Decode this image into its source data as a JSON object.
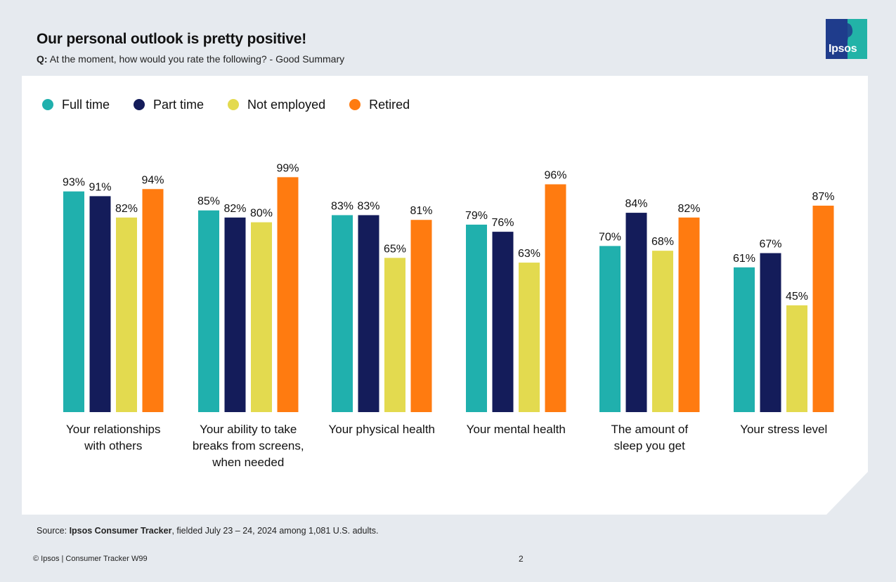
{
  "header": {
    "title": "Our personal outlook is pretty positive!",
    "question_prefix": "Q:",
    "question_text": "At the moment, how would you rate the following? - Good Summary"
  },
  "logo": {
    "text": "Ipsos"
  },
  "colors": {
    "full_time": "#20b0ad",
    "part_time": "#141c5a",
    "not_employed": "#e3da4f",
    "retired": "#ff7b10"
  },
  "chart_data": {
    "type": "bar",
    "title": "Our personal outlook is pretty positive!",
    "xlabel": "",
    "ylabel": "",
    "ylim": [
      0,
      100
    ],
    "value_suffix": "%",
    "categories": [
      [
        "Your relationships",
        "with others"
      ],
      [
        "Your ability to take",
        "breaks from screens,",
        "when needed"
      ],
      [
        "Your physical health"
      ],
      [
        "Your mental health"
      ],
      [
        "The amount of",
        "sleep you get"
      ],
      [
        "Your stress level"
      ]
    ],
    "series": [
      {
        "name": "Full time",
        "color": "#20b0ad",
        "values": [
          93,
          85,
          83,
          79,
          70,
          61
        ]
      },
      {
        "name": "Part time",
        "color": "#141c5a",
        "values": [
          91,
          82,
          83,
          76,
          84,
          67
        ]
      },
      {
        "name": "Not employed",
        "color": "#e3da4f",
        "values": [
          82,
          80,
          65,
          63,
          68,
          45
        ]
      },
      {
        "name": "Retired",
        "color": "#ff7b10",
        "values": [
          94,
          99,
          81,
          96,
          82,
          87
        ]
      }
    ],
    "legend_position": "top-left"
  },
  "footer": {
    "source_prefix": "Source: ",
    "source_bold": "Ipsos Consumer Tracker",
    "source_rest": ", fielded July 23 – 24, 2024 among 1,081 U.S. adults.",
    "copyright": "© Ipsos | Consumer Tracker W99",
    "page_number": "2"
  }
}
